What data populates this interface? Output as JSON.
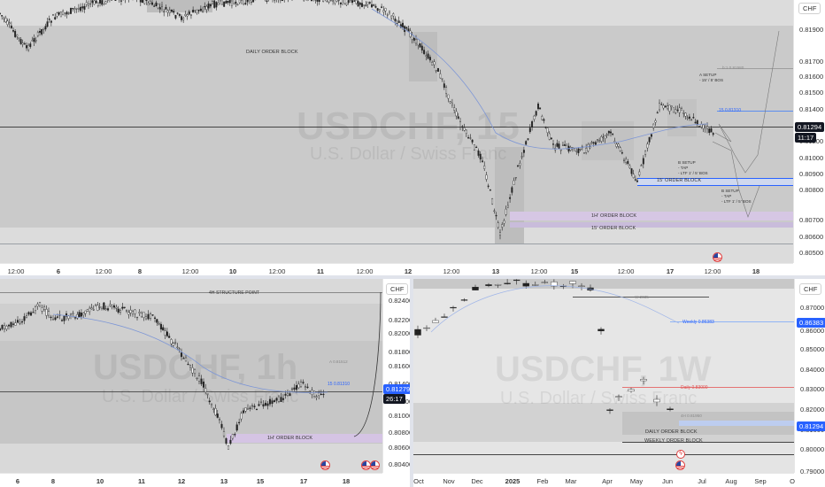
{
  "top_chart": {
    "symbol_watermark": "USDCHF, 15",
    "description_watermark": "U.S. Dollar / Swiss Franc",
    "currency_button": "CHF",
    "price_ticks": [
      "0.81900",
      "0.81700",
      "0.81600",
      "0.81500",
      "0.81400",
      "0.81200",
      "0.81000",
      "0.80900",
      "0.80800",
      "0.80700",
      "0.80600",
      "0.80500"
    ],
    "last_price": "0.81294",
    "countdown": "11:17",
    "time_ticks": [
      "12:00",
      "6",
      "12:00",
      "8",
      "12:00",
      "10",
      "12:00",
      "11",
      "12:00",
      "12",
      "12:00",
      "13",
      "12:00",
      "15",
      "12:00",
      "17",
      "12:00",
      "18"
    ],
    "labels": {
      "daily_ob": "DAILY ORDER BLOCK",
      "ob_15_mid": "15' ORDER BLOCK",
      "ob_1h": "1H' ORDER BLOCK",
      "ob_15_low": "15' ORDER BLOCK",
      "a_setup": "A SETUP\n- 15' / 5' BOS",
      "b_setup_1": "B SETUP\n- TAP\n- LTF 1' / 5' BOS",
      "b_setup_2": "B SETUP\n- TAP\n- LTF 1' / 5' BOS",
      "tag_target": "b:1 0.81580",
      "tag_blue": "15 0.81310"
    }
  },
  "bottom_left_chart": {
    "symbol_watermark": "USDCHF, 1h",
    "description_watermark": "U.S. Dollar / Swiss Franc",
    "currency_button": "CHF",
    "price_ticks": [
      "0.82400",
      "0.82200",
      "0.82000",
      "0.81800",
      "0.81600",
      "0.81400",
      "0.81200",
      "0.81000",
      "0.80800",
      "0.80600",
      "0.80400"
    ],
    "last_price": "0.81279",
    "countdown": "26:17",
    "time_ticks": [
      "6",
      "8",
      "10",
      "11",
      "12",
      "13",
      "15",
      "17",
      "18"
    ],
    "labels": {
      "structure": "4H STRUCTURE POINT",
      "ob_1h": "1H' ORDER BLOCK",
      "tag_a": "A 0.81512",
      "tag_b": "15 0.81310"
    }
  },
  "bottom_right_chart": {
    "symbol_watermark": "USDCHF, 1W",
    "description_watermark": "U.S. Dollar / Swiss Franc",
    "currency_button": "CHF",
    "price_ticks": [
      "0.87000",
      "0.86000",
      "0.85000",
      "0.84000",
      "0.83000",
      "0.82000",
      "0.81000",
      "0.80000",
      "0.79000"
    ],
    "last_price": "0.86383",
    "last_price_2": "0.81294",
    "time_ticks": [
      "Oct",
      "Nov",
      "Dec",
      "2025",
      "Feb",
      "Mar",
      "Apr",
      "May",
      "Jun",
      "Jul",
      "Aug",
      "Sep",
      "O"
    ],
    "labels": {
      "daily_ob": "DAILY ORDER BLOCK",
      "weekly_ob": "WEEKLY ORDER BLOCK",
      "tag_w": "W 2035",
      "tag_blue": "Weekly 0.86383",
      "tag_red": "Daily 0.83000",
      "tag_mid": "4H 0.81950"
    }
  },
  "colors": {
    "accent_blue": "#2962ff",
    "zone_gray": "#c6c6c6",
    "zone_purple": "#d7c4e6",
    "last_price_blue": "#2962ff",
    "text": "#131722"
  },
  "icons": [
    "us-flag-icon",
    "lightning-icon"
  ]
}
